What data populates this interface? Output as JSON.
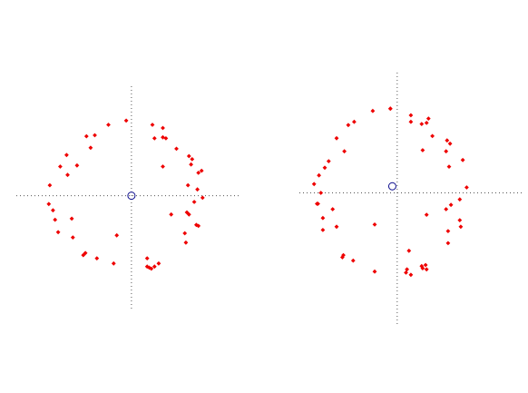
{
  "chart_data": [
    {
      "type": "scatter",
      "title": "",
      "xlabel": "",
      "ylabel": "",
      "xlim": [
        -1.1,
        1.05
      ],
      "ylim": [
        -1.1,
        1.05
      ],
      "grid": false,
      "marker_color": "#ee0000",
      "center_marker": {
        "x": 0.0,
        "y": 0.0,
        "color": "#0a0a8c",
        "shape": "open-circle"
      },
      "points": [
        [
          -0.05,
          0.72
        ],
        [
          0.2,
          0.68
        ],
        [
          0.3,
          0.65
        ],
        [
          0.22,
          0.55
        ],
        [
          0.3,
          0.56
        ],
        [
          0.33,
          0.55
        ],
        [
          0.43,
          0.45
        ],
        [
          0.55,
          0.38
        ],
        [
          0.58,
          0.35
        ],
        [
          0.57,
          0.3
        ],
        [
          0.3,
          0.28
        ],
        [
          0.64,
          0.22
        ],
        [
          0.67,
          0.24
        ],
        [
          0.54,
          0.1
        ],
        [
          0.63,
          0.06
        ],
        [
          0.68,
          -0.02
        ],
        [
          0.6,
          -0.06
        ],
        [
          0.38,
          -0.18
        ],
        [
          0.53,
          -0.16
        ],
        [
          0.55,
          -0.18
        ],
        [
          0.62,
          -0.28
        ],
        [
          0.64,
          -0.29
        ],
        [
          0.51,
          -0.36
        ],
        [
          0.52,
          -0.45
        ],
        [
          0.26,
          -0.65
        ],
        [
          0.22,
          -0.68
        ],
        [
          0.15,
          -0.6
        ],
        [
          0.15,
          -0.68
        ],
        [
          0.17,
          -0.69
        ],
        [
          0.19,
          -0.7
        ],
        [
          -0.17,
          -0.65
        ],
        [
          -0.33,
          -0.6
        ],
        [
          -0.46,
          -0.57
        ],
        [
          -0.44,
          -0.55
        ],
        [
          -0.14,
          -0.38
        ],
        [
          -0.56,
          -0.4
        ],
        [
          -0.7,
          -0.35
        ],
        [
          -0.57,
          -0.22
        ],
        [
          -0.73,
          -0.23
        ],
        [
          -0.75,
          -0.14
        ],
        [
          -0.79,
          -0.08
        ],
        [
          -0.78,
          0.1
        ],
        [
          -0.68,
          0.28
        ],
        [
          -0.61,
          0.2
        ],
        [
          -0.52,
          0.29
        ],
        [
          -0.62,
          0.39
        ],
        [
          -0.39,
          0.46
        ],
        [
          -0.43,
          0.57
        ],
        [
          -0.35,
          0.58
        ],
        [
          -0.22,
          0.68
        ]
      ]
    },
    {
      "type": "scatter",
      "title": "",
      "xlabel": "",
      "ylabel": "",
      "xlim": [
        -1.0,
        1.3
      ],
      "ylim": [
        -1.2,
        1.1
      ],
      "grid": false,
      "marker_color": "#ee0000",
      "center_marker": {
        "x": -0.05,
        "y": 0.06,
        "color": "#0a0a8c",
        "shape": "open-circle"
      },
      "points": [
        [
          -0.07,
          0.77
        ],
        [
          -0.25,
          0.75
        ],
        [
          -0.44,
          0.65
        ],
        [
          -0.5,
          0.62
        ],
        [
          -0.62,
          0.5
        ],
        [
          -0.54,
          0.38
        ],
        [
          -0.7,
          0.29
        ],
        [
          -0.74,
          0.23
        ],
        [
          -0.8,
          0.16
        ],
        [
          -0.85,
          0.08
        ],
        [
          -0.78,
          0.0
        ],
        [
          -0.82,
          -0.1
        ],
        [
          -0.81,
          -0.1
        ],
        [
          -0.66,
          -0.15
        ],
        [
          -0.76,
          -0.23
        ],
        [
          -0.76,
          -0.34
        ],
        [
          -0.62,
          -0.31
        ],
        [
          -0.55,
          -0.57
        ],
        [
          -0.56,
          -0.59
        ],
        [
          -0.45,
          -0.62
        ],
        [
          -0.23,
          -0.29
        ],
        [
          -0.23,
          -0.72
        ],
        [
          0.09,
          -0.73
        ],
        [
          0.14,
          -0.75
        ],
        [
          0.1,
          -0.7
        ],
        [
          0.26,
          -0.69
        ],
        [
          0.25,
          -0.67
        ],
        [
          0.29,
          -0.66
        ],
        [
          0.3,
          -0.7
        ],
        [
          0.12,
          -0.53
        ],
        [
          0.52,
          -0.46
        ],
        [
          0.52,
          -0.35
        ],
        [
          0.65,
          -0.31
        ],
        [
          0.64,
          -0.25
        ],
        [
          0.5,
          -0.15
        ],
        [
          0.3,
          -0.2
        ],
        [
          0.55,
          -0.11
        ],
        [
          0.64,
          -0.06
        ],
        [
          0.71,
          0.05
        ],
        [
          0.67,
          0.3
        ],
        [
          0.53,
          0.24
        ],
        [
          0.5,
          0.38
        ],
        [
          0.54,
          0.45
        ],
        [
          0.51,
          0.48
        ],
        [
          0.36,
          0.52
        ],
        [
          0.26,
          0.39
        ],
        [
          0.25,
          0.63
        ],
        [
          0.3,
          0.64
        ],
        [
          0.32,
          0.68
        ],
        [
          0.14,
          0.65
        ],
        [
          0.14,
          0.71
        ],
        [
          -0.07,
          0.77
        ]
      ]
    }
  ]
}
